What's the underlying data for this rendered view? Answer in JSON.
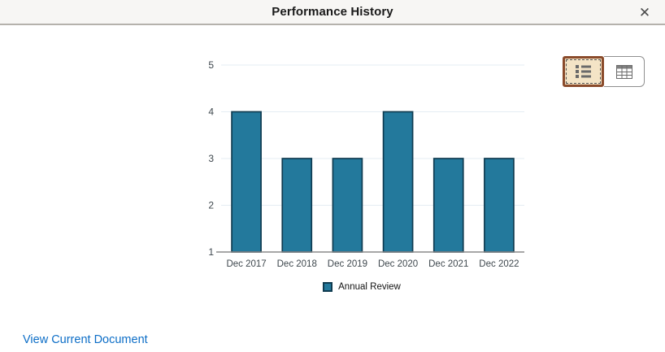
{
  "header": {
    "title": "Performance History",
    "close_glyph": "✕"
  },
  "chart_data": {
    "type": "bar",
    "categories": [
      "Dec 2017",
      "Dec 2018",
      "Dec 2019",
      "Dec 2020",
      "Dec 2021",
      "Dec 2022"
    ],
    "values": [
      4,
      3,
      3,
      4,
      3,
      3
    ],
    "series_label": "Annual Review",
    "title": "",
    "xlabel": "",
    "ylabel": "",
    "ylim": [
      1,
      5
    ],
    "yticks": [
      1,
      2,
      3,
      4,
      5
    ],
    "grid": true,
    "legend_position": "bottom"
  },
  "view_toggle": {
    "selected": "list-view",
    "buttons": [
      {
        "icon": "list-view-icon",
        "selected": true
      },
      {
        "icon": "table-view-icon",
        "selected": false
      }
    ]
  },
  "footer": {
    "link_label": "View Current Document"
  },
  "colors": {
    "bar_fill": "#23799C",
    "bar_stroke": "#0F3B50",
    "gridline": "#E4EDF3",
    "axis": "#8A8A8A",
    "tick_label": "#3E474D",
    "legend_text": "#121212",
    "link": "#0D6EC7",
    "header_bg": "#F7F6F4",
    "header_border": "#B5B2AC",
    "selected_bg": "#F4E4C6",
    "selected_border": "#8A4B2B",
    "button_border": "#8F8F8F",
    "icon_gray": "#6A6A6A"
  }
}
